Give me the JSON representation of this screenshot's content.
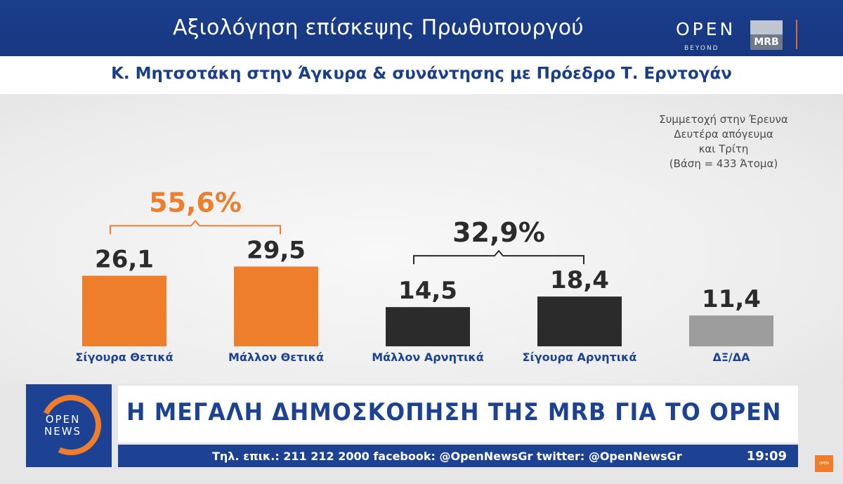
{
  "header": {
    "title": "Αξιολόγηση επίσκεψης Πρωθυπουργού",
    "logo_open": "OPEN",
    "logo_beyond": "BEYOND",
    "logo_mrb": "MRB",
    "subtitle": "Κ. Μητσοτάκη στην Άγκυρα & συνάντησης με Πρόεδρο Τ. Ερντογάν"
  },
  "note": [
    "Συμμετοχή στην Έρευνα",
    "Δευτέρα απόγευμα",
    "και Τρίτη",
    "(Βάση = 433 Άτομα)"
  ],
  "chart_data": {
    "type": "bar",
    "categories": [
      "Σίγουρα Θετικά",
      "Μάλλον Θετικά",
      "Μάλλον Αρνητικά",
      "Σίγουρα Αρνητικά",
      "ΔΞ/ΔΑ"
    ],
    "values": [
      26.1,
      29.5,
      14.5,
      18.4,
      11.4
    ],
    "value_labels": [
      "26,1",
      "29,5",
      "14,5",
      "18,4",
      "11,4"
    ],
    "bar_colors": [
      "#ee7d2c",
      "#ee7d2c",
      "#2b2b2b",
      "#2b2b2b",
      "#9d9d9d"
    ],
    "label_colors": [
      "#1d4294",
      "#1d4294",
      "#1d4294",
      "#1d4294",
      "#1d4294"
    ],
    "groups": [
      {
        "label": "55,6%",
        "from": 0,
        "to": 1,
        "color": "#ee7d2c"
      },
      {
        "label": "32,9%",
        "from": 2,
        "to": 3,
        "color": "#2b2b2b"
      }
    ],
    "ylim": [
      0,
      30
    ],
    "grid": false,
    "title": "",
    "xlabel": "",
    "ylabel": ""
  },
  "banner": {
    "logo_line1": "OPEN",
    "logo_line2": "NEWS",
    "headline": "Η ΜΕΓΑΛΗ ΔΗΜΟΣΚΟΠΗΣΗ ΤΗΣ MRB ΓΙΑ ΤΟ OPEN",
    "ticker": "Τηλ. επικ.: 211 212 2000 facebook: @OpenNewsGr twitter: @OpenNewsGr",
    "clock": "19:09",
    "corner_badge": "OPEN"
  },
  "colors": {
    "brand_blue": "#1d4294",
    "accent_orange": "#ee7d2c"
  }
}
